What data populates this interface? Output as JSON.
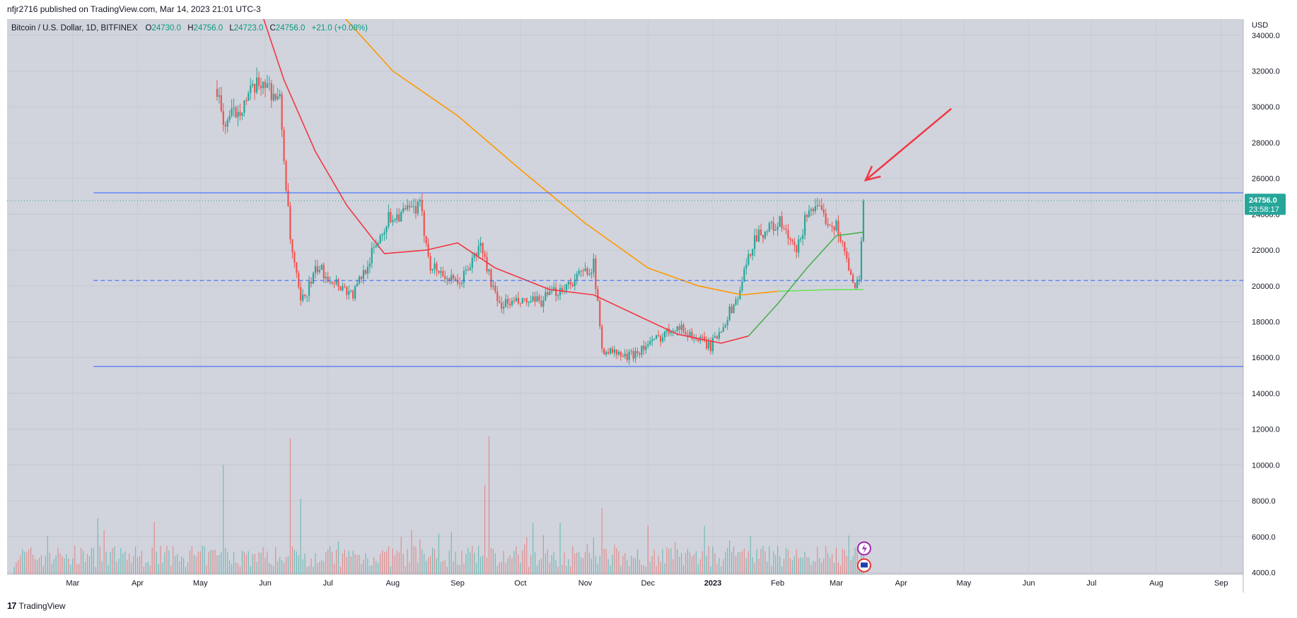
{
  "caption": "nfjr2716 published on TradingView.com, Mar 14, 2023 21:01 UTC-3",
  "legend": {
    "symbol": "Bitcoin / U.S. Dollar, 1D, BITFINEX",
    "o_label": "O",
    "o_val": "24730.0",
    "h_label": "H",
    "h_val": "24756.0",
    "l_label": "L",
    "l_val": "24723.0",
    "c_label": "C",
    "c_val": "24756.0",
    "change": "+21.0 (+0.08%)"
  },
  "footer": "TradingView",
  "price_badge": {
    "price": "24756.0",
    "countdown": "23:58:17"
  },
  "colors": {
    "up": "#26a69a",
    "down": "#ef5350",
    "ma_red": "#f23645",
    "ma_orange": "#ff9800",
    "ma_green": "#4caf50",
    "ma_bright_green": "#6ee25b",
    "level": "#2962ff",
    "arrow": "#f23645",
    "bg": "#d1d4dc"
  },
  "chart_data": {
    "type": "candlestick",
    "currency": "USD",
    "y_ticks": [
      "34000.0",
      "32000.0",
      "30000.0",
      "28000.0",
      "26000.0",
      "24000.0",
      "22000.0",
      "20000.0",
      "18000.0",
      "16000.0",
      "14000.0",
      "12000.0",
      "10000.0",
      "8000.0",
      "6000.0",
      "4000.0"
    ],
    "ylim": [
      3900,
      34900
    ],
    "x_labels": [
      "Mar",
      "Apr",
      "May",
      "Jun",
      "Jul",
      "Aug",
      "Sep",
      "Oct",
      "Nov",
      "Dec",
      "2023",
      "Feb",
      "Mar",
      "Apr",
      "May",
      "Jun",
      "Jul",
      "Aug",
      "Sep"
    ],
    "horizontal_levels": [
      {
        "price": 25200,
        "style": "solid"
      },
      {
        "price": 20300,
        "style": "dashed"
      },
      {
        "price": 15500,
        "style": "solid"
      }
    ],
    "last_price": 24756,
    "price_path": [
      {
        "date": "2022-05-09",
        "price": 31000
      },
      {
        "date": "2022-05-12",
        "price": 29000
      },
      {
        "date": "2022-05-20",
        "price": 30000
      },
      {
        "date": "2022-05-31",
        "price": 31500
      },
      {
        "date": "2022-06-08",
        "price": 30300
      },
      {
        "date": "2022-06-13",
        "price": 22500
      },
      {
        "date": "2022-06-18",
        "price": 19000
      },
      {
        "date": "2022-06-26",
        "price": 21000
      },
      {
        "date": "2022-07-13",
        "price": 19500
      },
      {
        "date": "2022-07-30",
        "price": 23800
      },
      {
        "date": "2022-08-14",
        "price": 24400
      },
      {
        "date": "2022-08-19",
        "price": 21200
      },
      {
        "date": "2022-09-01",
        "price": 20000
      },
      {
        "date": "2022-09-09",
        "price": 21600
      },
      {
        "date": "2022-09-12",
        "price": 22300
      },
      {
        "date": "2022-09-20",
        "price": 19000
      },
      {
        "date": "2022-10-10",
        "price": 19100
      },
      {
        "date": "2022-10-25",
        "price": 20200
      },
      {
        "date": "2022-11-05",
        "price": 21200
      },
      {
        "date": "2022-11-09",
        "price": 16500
      },
      {
        "date": "2022-11-21",
        "price": 16000
      },
      {
        "date": "2022-12-05",
        "price": 17000
      },
      {
        "date": "2022-12-14",
        "price": 17800
      },
      {
        "date": "2022-12-31",
        "price": 16600
      },
      {
        "date": "2023-01-13",
        "price": 19400
      },
      {
        "date": "2023-01-21",
        "price": 22800
      },
      {
        "date": "2023-02-02",
        "price": 23500
      },
      {
        "date": "2023-02-10",
        "price": 21800
      },
      {
        "date": "2023-02-16",
        "price": 24500
      },
      {
        "date": "2023-02-23",
        "price": 23900
      },
      {
        "date": "2023-03-02",
        "price": 23200
      },
      {
        "date": "2023-03-09",
        "price": 20000
      },
      {
        "date": "2023-03-12",
        "price": 20500
      },
      {
        "date": "2023-03-14",
        "price": 24756
      }
    ],
    "ma_red_path": [
      {
        "date": "2022-05-31",
        "price": 35000
      },
      {
        "date": "2022-06-10",
        "price": 31500
      },
      {
        "date": "2022-06-25",
        "price": 27500
      },
      {
        "date": "2022-07-10",
        "price": 24500
      },
      {
        "date": "2022-07-28",
        "price": 21800
      },
      {
        "date": "2022-08-17",
        "price": 22000
      },
      {
        "date": "2022-09-01",
        "price": 22400
      },
      {
        "date": "2022-09-19",
        "price": 21000
      },
      {
        "date": "2022-10-15",
        "price": 19800
      },
      {
        "date": "2022-11-05",
        "price": 19500
      },
      {
        "date": "2022-11-25",
        "price": 18400
      },
      {
        "date": "2022-12-15",
        "price": 17300
      },
      {
        "date": "2023-01-05",
        "price": 16800
      },
      {
        "date": "2023-01-18",
        "price": 17200
      }
    ],
    "ma_green_path": [
      {
        "date": "2023-01-18",
        "price": 17200
      },
      {
        "date": "2023-02-01",
        "price": 19000
      },
      {
        "date": "2023-02-15",
        "price": 21000
      },
      {
        "date": "2023-03-01",
        "price": 22800
      },
      {
        "date": "2023-03-14",
        "price": 23000
      }
    ],
    "ma_orange_path": [
      {
        "date": "2022-07-01",
        "price": 36000
      },
      {
        "date": "2022-08-01",
        "price": 32000
      },
      {
        "date": "2022-09-01",
        "price": 29500
      },
      {
        "date": "2022-10-01",
        "price": 26500
      },
      {
        "date": "2022-11-01",
        "price": 23500
      },
      {
        "date": "2022-12-01",
        "price": 21000
      },
      {
        "date": "2022-12-25",
        "price": 20000
      },
      {
        "date": "2023-01-15",
        "price": 19500
      },
      {
        "date": "2023-02-01",
        "price": 19700
      }
    ],
    "ma_bright_green_path": [
      {
        "date": "2023-02-01",
        "price": 19700
      },
      {
        "date": "2023-03-01",
        "price": 19800
      },
      {
        "date": "2023-03-14",
        "price": 19800
      }
    ],
    "volume_baseline": 4000,
    "volume_note_spikes": [
      {
        "date": "2022-05-12",
        "value": 10000
      },
      {
        "date": "2022-06-13",
        "value": 11500
      },
      {
        "date": "2022-06-18",
        "value": 8100
      },
      {
        "date": "2022-09-14",
        "value": 8900
      },
      {
        "date": "2022-09-16",
        "value": 11600
      },
      {
        "date": "2022-11-09",
        "value": 7600
      }
    ],
    "arrow_annotation": {
      "from": {
        "date": "2023-04-25",
        "price": 29900
      },
      "to": {
        "date": "2023-03-15",
        "price": 25900
      }
    }
  }
}
